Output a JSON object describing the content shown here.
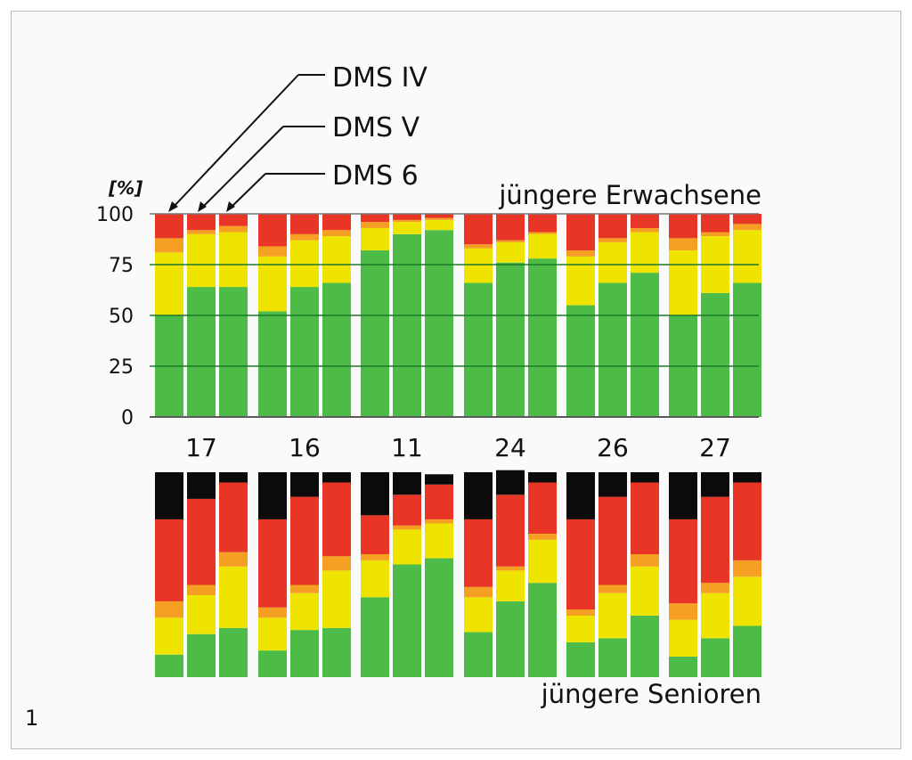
{
  "figure_number": "1",
  "colors": {
    "green": "#4cbb47",
    "yellow": "#efe400",
    "orange": "#f5a022",
    "red": "#e83525",
    "black": "#0b0b0b",
    "grid": "#1a7a2a"
  },
  "chart_data": {
    "type": "bar",
    "stacked": true,
    "y_unit_label": "[%]",
    "yticks": [
      "100",
      "75",
      "50",
      "25",
      "0"
    ],
    "ylim": [
      0,
      100
    ],
    "group_labels": [
      "17",
      "16",
      "11",
      "24",
      "26",
      "27"
    ],
    "series_order": [
      "green",
      "yellow",
      "orange",
      "red",
      "black"
    ],
    "annotations": [
      "DMS IV",
      "DMS V",
      "DMS 6"
    ],
    "panels": [
      {
        "label": "jüngere Erwachsene",
        "bars": [
          [
            [
              50,
              31,
              7,
              12,
              0
            ],
            [
              64,
              26,
              2,
              8,
              0
            ],
            [
              64,
              27,
              3,
              6,
              0
            ]
          ],
          [
            [
              52,
              27,
              5,
              16,
              0
            ],
            [
              64,
              23,
              3,
              10,
              0
            ],
            [
              66,
              23,
              3,
              8,
              0
            ]
          ],
          [
            [
              82,
              11,
              3,
              4,
              0
            ],
            [
              90,
              6,
              1,
              3,
              0
            ],
            [
              92,
              5,
              1,
              2,
              0
            ]
          ],
          [
            [
              66,
              17,
              2,
              15,
              0
            ],
            [
              76,
              10,
              1,
              13,
              0
            ],
            [
              78,
              12,
              1,
              9,
              0
            ]
          ],
          [
            [
              55,
              24,
              3,
              18,
              0
            ],
            [
              66,
              20,
              2,
              12,
              0
            ],
            [
              71,
              20,
              2,
              7,
              0
            ]
          ],
          [
            [
              50,
              32,
              6,
              12,
              0
            ],
            [
              61,
              28,
              2,
              9,
              0
            ],
            [
              66,
              26,
              3,
              5,
              0
            ]
          ]
        ]
      },
      {
        "label": "jüngere Senioren",
        "bars": [
          [
            [
              11,
              18,
              8,
              40,
              23
            ],
            [
              21,
              19,
              5,
              42,
              13
            ],
            [
              24,
              30,
              7,
              34,
              5
            ]
          ],
          [
            [
              13,
              16,
              5,
              43,
              23
            ],
            [
              23,
              18,
              4,
              43,
              12
            ],
            [
              24,
              28,
              7,
              36,
              5
            ]
          ],
          [
            [
              39,
              18,
              3,
              19,
              21
            ],
            [
              55,
              17,
              2,
              15,
              11
            ],
            [
              58,
              17,
              2,
              17,
              5
            ]
          ],
          [
            [
              22,
              17,
              5,
              33,
              23
            ],
            [
              37,
              15,
              2,
              35,
              12
            ],
            [
              46,
              21,
              3,
              25,
              5
            ]
          ],
          [
            [
              17,
              13,
              3,
              44,
              23
            ],
            [
              19,
              22,
              4,
              43,
              12
            ],
            [
              30,
              24,
              6,
              35,
              5
            ]
          ],
          [
            [
              10,
              18,
              8,
              41,
              23
            ],
            [
              19,
              22,
              5,
              42,
              12
            ],
            [
              25,
              24,
              8,
              38,
              5
            ]
          ]
        ]
      }
    ]
  }
}
